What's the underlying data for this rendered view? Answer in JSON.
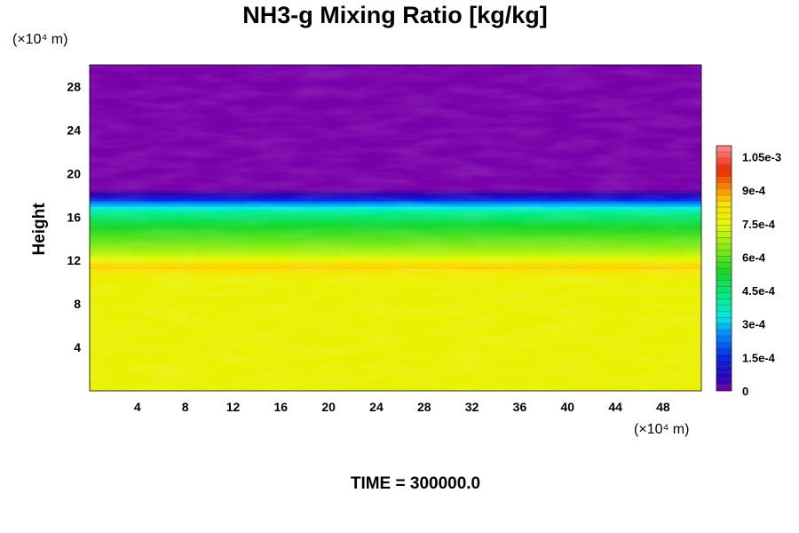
{
  "chart_data": {
    "type": "heatmap",
    "title": "NH3-g Mixing Ratio [kg/kg]",
    "ylabel": "Height",
    "xlabel": "",
    "y_unit": "(×10⁴ m)",
    "x_unit": "(×10⁴ m)",
    "xlim": [
      0,
      51.2
    ],
    "ylim": [
      0,
      30
    ],
    "x_ticks": [
      "4",
      "8",
      "12",
      "16",
      "20",
      "24",
      "28",
      "32",
      "36",
      "40",
      "44",
      "48"
    ],
    "x_tick_values": [
      4,
      8,
      12,
      16,
      20,
      24,
      28,
      32,
      36,
      40,
      44,
      48
    ],
    "y_ticks": [
      "4",
      "8",
      "12",
      "16",
      "20",
      "24",
      "28"
    ],
    "y_tick_values": [
      4,
      8,
      12,
      16,
      20,
      24,
      28
    ],
    "colorbar": {
      "range": [
        0,
        0.0011
      ],
      "labels": [
        "0",
        "1.5e-4",
        "3e-4",
        "4.5e-4",
        "6e-4",
        "7.5e-4",
        "9e-4",
        "1.05e-3"
      ],
      "label_values": [
        0,
        0.00015,
        0.0003,
        0.00045,
        0.0006,
        0.00075,
        0.0009,
        0.00105
      ]
    },
    "field_profile": {
      "height": [
        0,
        10.5,
        11.5,
        12.5,
        13.5,
        14.5,
        15.5,
        16.5,
        17.3,
        17.8,
        18.2,
        18.6,
        30
      ],
      "value": [
        0.00078,
        0.00078,
        0.00086,
        0.00071,
        0.00063,
        0.00057,
        0.0005,
        0.0004,
        0.00025,
        0.0001,
        4e-05,
        0.0,
        0.0
      ]
    },
    "grid": false,
    "legend": "colorbar-right"
  },
  "time_label": "TIME = 300000.0"
}
